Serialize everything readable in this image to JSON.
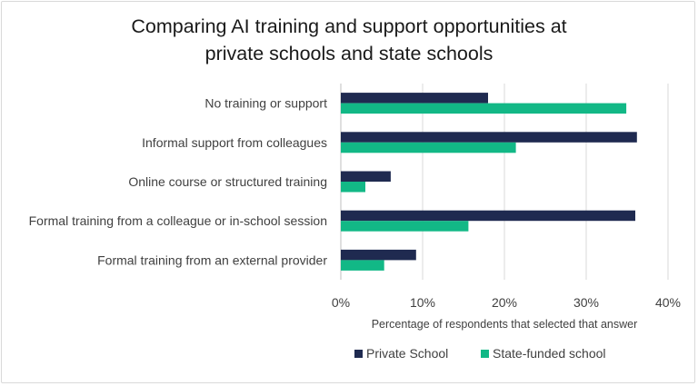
{
  "chart_data": {
    "type": "bar",
    "orientation": "horizontal",
    "title_lines": [
      "Comparing AI training and support opportunities at",
      "private schools and state schools"
    ],
    "categories": [
      "No training or support",
      "Informal support from colleagues",
      "Online course or structured training",
      "Formal training from a colleague or in-school session",
      "Formal training from an external provider"
    ],
    "series": [
      {
        "name": "Private School",
        "color": "#1f2a50",
        "values": [
          18.0,
          36.2,
          6.1,
          36.0,
          9.2
        ]
      },
      {
        "name": "State-funded school",
        "color": "#12b886",
        "values": [
          34.9,
          21.4,
          3.0,
          15.6,
          5.3
        ]
      }
    ],
    "xlabel": "Percentage of respondents that selected that answer",
    "xlim": [
      0,
      40
    ],
    "xticks": [
      "0%",
      "10%",
      "20%",
      "30%",
      "40%"
    ],
    "grid": true,
    "legend_position": "bottom"
  }
}
